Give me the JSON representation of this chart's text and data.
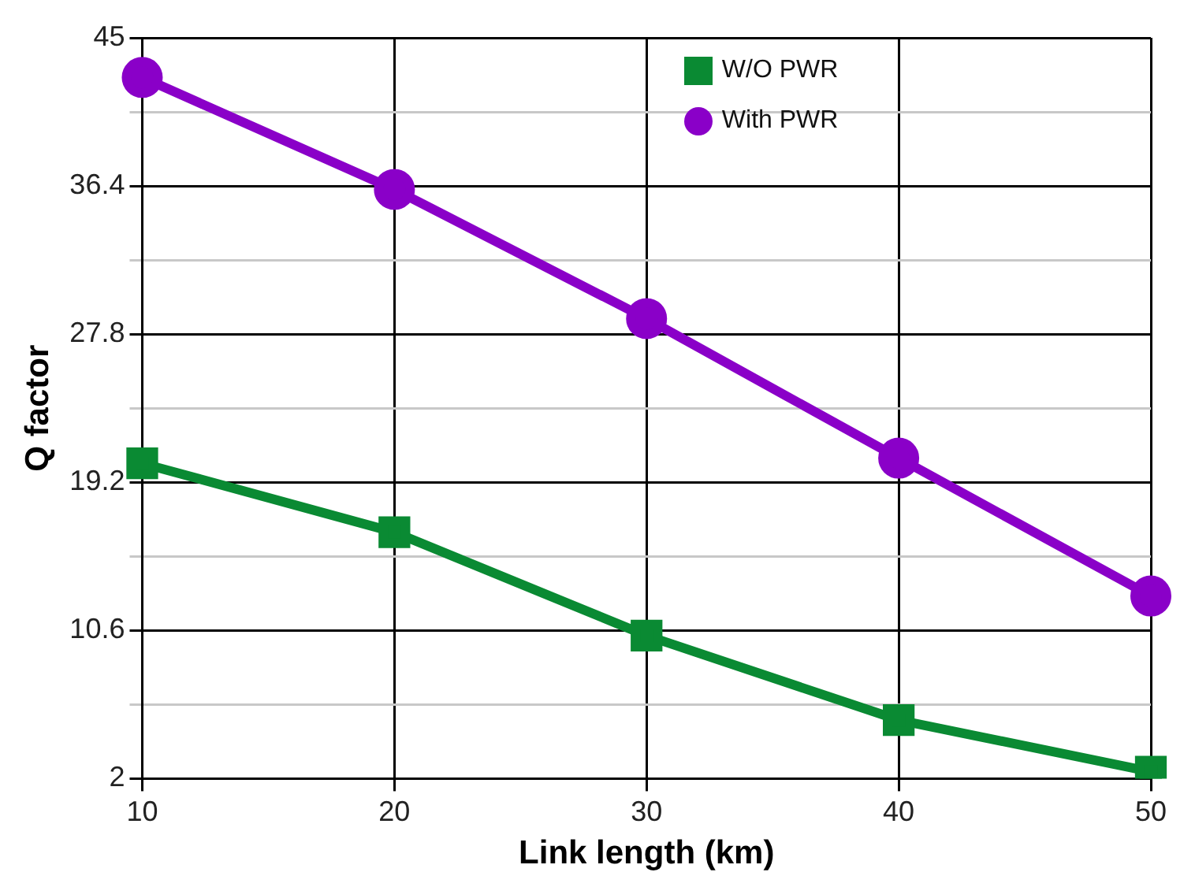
{
  "chart_data": {
    "type": "line",
    "xlabel": "Link length (km)",
    "ylabel": "Q factor",
    "categories": [
      "10",
      "20",
      "30",
      "40",
      "50"
    ],
    "series": [
      {
        "name": "W/O PWR",
        "color": "#0a8a33",
        "marker": "square",
        "values": [
          20.3,
          16.3,
          10.3,
          5.4,
          2.4
        ]
      },
      {
        "name": "With PWR",
        "color": "#8a00c8",
        "marker": "circle",
        "values": [
          42.7,
          36.2,
          28.7,
          20.6,
          12.6
        ]
      }
    ],
    "ylim": [
      2,
      45
    ],
    "yticks": [
      2,
      {
        "value": 6.3,
        "label": null
      },
      10.6,
      {
        "value": 14.9,
        "label": null
      },
      19.2,
      {
        "value": 23.5,
        "label": null
      },
      27.8,
      {
        "value": 32.1,
        "label": null
      },
      36.4,
      {
        "value": 40.7,
        "label": null
      },
      45
    ],
    "grid": true,
    "legend": "top right"
  }
}
